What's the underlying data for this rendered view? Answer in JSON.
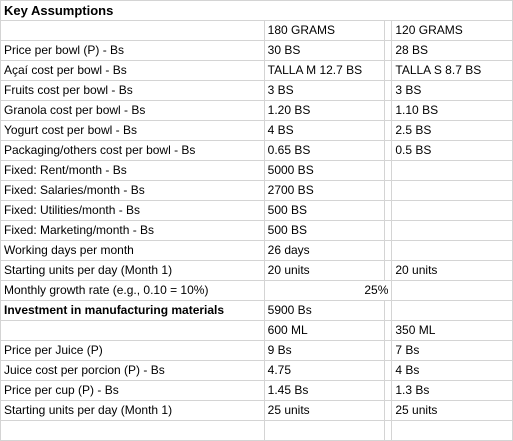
{
  "title": "Key Assumptions",
  "headers": {
    "col1": "180 GRAMS",
    "col2": "120 GRAMS"
  },
  "rows": [
    {
      "label": "Price per bowl (P) - Bs",
      "v1": "30 BS",
      "v2": "28 BS"
    },
    {
      "label": "Açaí cost per bowl - Bs",
      "v1": "TALLA M 12.7 BS",
      "v2": "TALLA S 8.7 BS"
    },
    {
      "label": "Fruits cost per bowl - Bs",
      "v1": "3 BS",
      "v2": "3 BS"
    },
    {
      "label": "Granola cost per bowl - Bs",
      "v1": "1.20 BS",
      "v2": "1.10 BS"
    },
    {
      "label": "Yogurt cost per bowl - Bs",
      "v1": "4 BS",
      "v2": "2.5 BS"
    },
    {
      "label": "Packaging/others cost per bowl - Bs",
      "v1": " 0.65 BS",
      "v2": "0.5 BS"
    },
    {
      "label": "Fixed: Rent/month - Bs",
      "v1": "5000 BS",
      "v2": ""
    },
    {
      "label": "Fixed: Salaries/month - Bs",
      "v1": "2700 BS",
      "v2": ""
    },
    {
      "label": "Fixed: Utilities/month - Bs",
      "v1": "500 BS",
      "v2": ""
    },
    {
      "label": "Fixed: Marketing/month - Bs",
      "v1": " 500 BS",
      "v2": ""
    },
    {
      "label": "Working days per month",
      "v1": "26 days",
      "v2": ""
    },
    {
      "label": "Starting units per day (Month 1)",
      "v1": "20 units",
      "v2": "20 units"
    },
    {
      "label": "Monthly growth rate (e.g., 0.10 = 10%)",
      "v1": "25%",
      "v2": ""
    },
    {
      "label": "Investment in manufacturing materials",
      "v1": "5900 Bs",
      "v2": ""
    },
    {
      "label": "",
      "v1": "600 ML",
      "v2": "350 ML"
    },
    {
      "label": "Price per Juice (P)",
      "v1": "9 Bs",
      "v2": "7 Bs"
    },
    {
      "label": "Juice cost per porcion (P) - Bs",
      "v1": "4.75",
      "v2": "4 Bs"
    },
    {
      "label": "Price per cup (P) - Bs",
      "v1": "1.45 Bs",
      "v2": "1.3 Bs"
    },
    {
      "label": "Starting units per day (Month 1)",
      "v1": "25 units",
      "v2": "25 units"
    }
  ]
}
